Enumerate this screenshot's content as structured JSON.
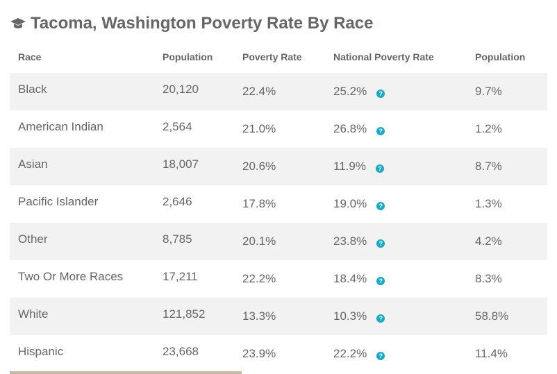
{
  "title": "Tacoma, Washington Poverty Rate By Race",
  "icon": "graduation-cap-icon",
  "accent": "#1aa9c4",
  "headers": [
    "Race",
    "Population",
    "Poverty Rate",
    "National Poverty Rate",
    "Population"
  ],
  "rows": [
    {
      "race": "Black",
      "population": "20,120",
      "poverty_rate": "22.4%",
      "national_rate": "25.2%",
      "pop_share": "9.7%"
    },
    {
      "race": "American Indian",
      "population": "2,564",
      "poverty_rate": "21.0%",
      "national_rate": "26.8%",
      "pop_share": "1.2%"
    },
    {
      "race": "Asian",
      "population": "18,007",
      "poverty_rate": "20.6%",
      "national_rate": "11.9%",
      "pop_share": "8.7%"
    },
    {
      "race": "Pacific Islander",
      "population": "2,646",
      "poverty_rate": "17.8%",
      "national_rate": "19.0%",
      "pop_share": "1.3%"
    },
    {
      "race": "Other",
      "population": "8,785",
      "poverty_rate": "20.1%",
      "national_rate": "23.8%",
      "pop_share": "4.2%"
    },
    {
      "race": "Two Or More Races",
      "population": "17,211",
      "poverty_rate": "22.2%",
      "national_rate": "18.4%",
      "pop_share": "8.3%"
    },
    {
      "race": "White",
      "population": "121,852",
      "poverty_rate": "13.3%",
      "national_rate": "10.3%",
      "pop_share": "58.8%"
    },
    {
      "race": "Hispanic",
      "population": "23,668",
      "poverty_rate": "23.9%",
      "national_rate": "22.2%",
      "pop_share": "11.4%"
    }
  ],
  "help_glyph": "?"
}
